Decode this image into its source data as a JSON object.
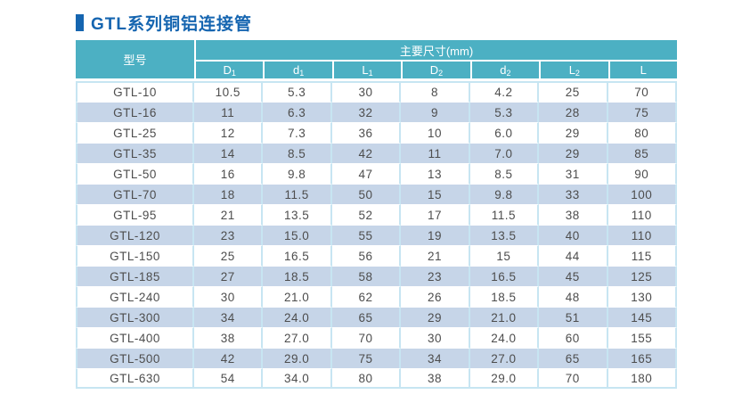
{
  "title": {
    "text": "GTL系列铜铝连接管"
  },
  "table": {
    "model_header": "型号",
    "dims_header": "主要尺寸(mm)",
    "columns": [
      {
        "base": "D",
        "sub": "1"
      },
      {
        "base": "d",
        "sub": "1"
      },
      {
        "base": "L",
        "sub": "1"
      },
      {
        "base": "D",
        "sub": "2"
      },
      {
        "base": "d",
        "sub": "2"
      },
      {
        "base": "L",
        "sub": "2"
      },
      {
        "base": "L",
        "sub": ""
      }
    ],
    "rows": [
      {
        "model": "GTL-10",
        "values": [
          "10.5",
          "5.3",
          "30",
          "8",
          "4.2",
          "25",
          "70"
        ]
      },
      {
        "model": "GTL-16",
        "values": [
          "11",
          "6.3",
          "32",
          "9",
          "5.3",
          "28",
          "75"
        ]
      },
      {
        "model": "GTL-25",
        "values": [
          "12",
          "7.3",
          "36",
          "10",
          "6.0",
          "29",
          "80"
        ]
      },
      {
        "model": "GTL-35",
        "values": [
          "14",
          "8.5",
          "42",
          "11",
          "7.0",
          "29",
          "85"
        ]
      },
      {
        "model": "GTL-50",
        "values": [
          "16",
          "9.8",
          "47",
          "13",
          "8.5",
          "31",
          "90"
        ]
      },
      {
        "model": "GTL-70",
        "values": [
          "18",
          "11.5",
          "50",
          "15",
          "9.8",
          "33",
          "100"
        ]
      },
      {
        "model": "GTL-95",
        "values": [
          "21",
          "13.5",
          "52",
          "17",
          "11.5",
          "38",
          "110"
        ]
      },
      {
        "model": "GTL-120",
        "values": [
          "23",
          "15.0",
          "55",
          "19",
          "13.5",
          "40",
          "110"
        ]
      },
      {
        "model": "GTL-150",
        "values": [
          "25",
          "16.5",
          "56",
          "21",
          "15",
          "44",
          "115"
        ]
      },
      {
        "model": "GTL-185",
        "values": [
          "27",
          "18.5",
          "58",
          "23",
          "16.5",
          "45",
          "125"
        ]
      },
      {
        "model": "GTL-240",
        "values": [
          "30",
          "21.0",
          "62",
          "26",
          "18.5",
          "48",
          "130"
        ]
      },
      {
        "model": "GTL-300",
        "values": [
          "34",
          "24.0",
          "65",
          "29",
          "21.0",
          "51",
          "145"
        ]
      },
      {
        "model": "GTL-400",
        "values": [
          "38",
          "27.0",
          "70",
          "30",
          "24.0",
          "60",
          "155"
        ]
      },
      {
        "model": "GTL-500",
        "values": [
          "42",
          "29.0",
          "75",
          "34",
          "27.0",
          "65",
          "165"
        ]
      },
      {
        "model": "GTL-630",
        "values": [
          "54",
          "34.0",
          "80",
          "38",
          "29.0",
          "70",
          "180"
        ]
      }
    ]
  },
  "colors": {
    "title_blue": "#1565b0",
    "header_teal": "#4cb0c3",
    "row_alt_blue": "#c6d5e8",
    "grid_light_blue": "#c7e5f2",
    "cell_text": "#4d4d4d",
    "background": "#ffffff"
  }
}
